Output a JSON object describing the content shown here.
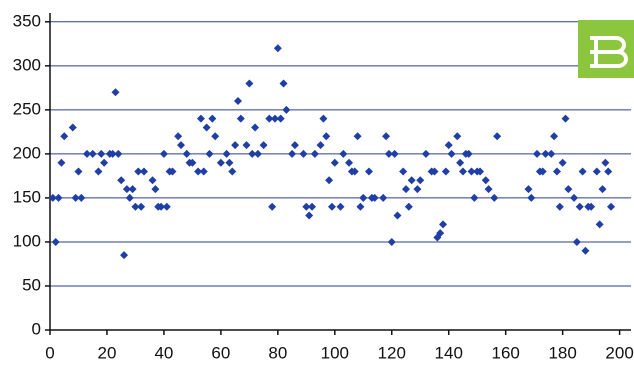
{
  "chart_data": {
    "type": "scatter",
    "color": "#1f3fa6",
    "grid": true,
    "xlim": [
      0,
      204
    ],
    "ylim": [
      0,
      360
    ],
    "xticks": [
      0,
      20,
      40,
      60,
      80,
      100,
      120,
      140,
      160,
      180,
      200
    ],
    "yticks": [
      0,
      50,
      100,
      150,
      200,
      250,
      300,
      350
    ],
    "x": [
      1,
      2,
      3,
      4,
      5,
      8,
      9,
      10,
      11,
      13,
      15,
      17,
      18,
      19,
      21,
      22,
      23,
      24,
      25,
      26,
      27,
      28,
      29,
      30,
      31,
      32,
      33,
      36,
      37,
      38,
      39,
      40,
      41,
      42,
      43,
      45,
      46,
      48,
      49,
      50,
      52,
      53,
      54,
      55,
      56,
      57,
      58,
      60,
      62,
      63,
      64,
      65,
      66,
      67,
      69,
      70,
      71,
      72,
      73,
      75,
      77,
      78,
      79,
      80,
      81,
      82,
      83,
      85,
      86,
      89,
      90,
      91,
      92,
      93,
      95,
      96,
      97,
      98,
      99,
      100,
      102,
      103,
      105,
      106,
      107,
      108,
      109,
      110,
      112,
      113,
      114,
      117,
      118,
      119,
      120,
      121,
      122,
      124,
      125,
      126,
      127,
      129,
      130,
      132,
      134,
      135,
      136,
      137,
      138,
      139,
      140,
      141,
      143,
      144,
      145,
      146,
      147,
      148,
      149,
      150,
      151,
      153,
      154,
      156,
      157,
      168,
      169,
      171,
      172,
      173,
      174,
      176,
      177,
      178,
      179,
      180,
      181,
      182,
      184,
      185,
      186,
      187,
      188,
      189,
      190,
      192,
      193,
      194,
      195,
      196,
      197
    ],
    "values": [
      150,
      100,
      150,
      190,
      220,
      230,
      150,
      180,
      150,
      200,
      200,
      180,
      200,
      190,
      200,
      200,
      270,
      200,
      170,
      85,
      160,
      150,
      160,
      140,
      180,
      140,
      180,
      170,
      160,
      140,
      140,
      200,
      140,
      180,
      180,
      220,
      210,
      200,
      190,
      190,
      180,
      240,
      180,
      230,
      200,
      240,
      220,
      190,
      200,
      190,
      180,
      210,
      260,
      240,
      210,
      280,
      200,
      230,
      200,
      210,
      240,
      140,
      240,
      320,
      240,
      280,
      250,
      200,
      210,
      200,
      140,
      130,
      140,
      200,
      210,
      240,
      220,
      170,
      140,
      190,
      140,
      200,
      190,
      180,
      180,
      220,
      140,
      150,
      180,
      150,
      150,
      150,
      220,
      200,
      100,
      200,
      130,
      180,
      160,
      140,
      170,
      160,
      170,
      200,
      180,
      180,
      105,
      110,
      120,
      180,
      210,
      200,
      220,
      190,
      180,
      200,
      200,
      180,
      150,
      180,
      180,
      170,
      160,
      150,
      220,
      160,
      150,
      200,
      180,
      180,
      200,
      200,
      220,
      180,
      140,
      190,
      240,
      160,
      150,
      100,
      140,
      180,
      90,
      140,
      140,
      180,
      120,
      160,
      190,
      180,
      140
    ]
  }
}
